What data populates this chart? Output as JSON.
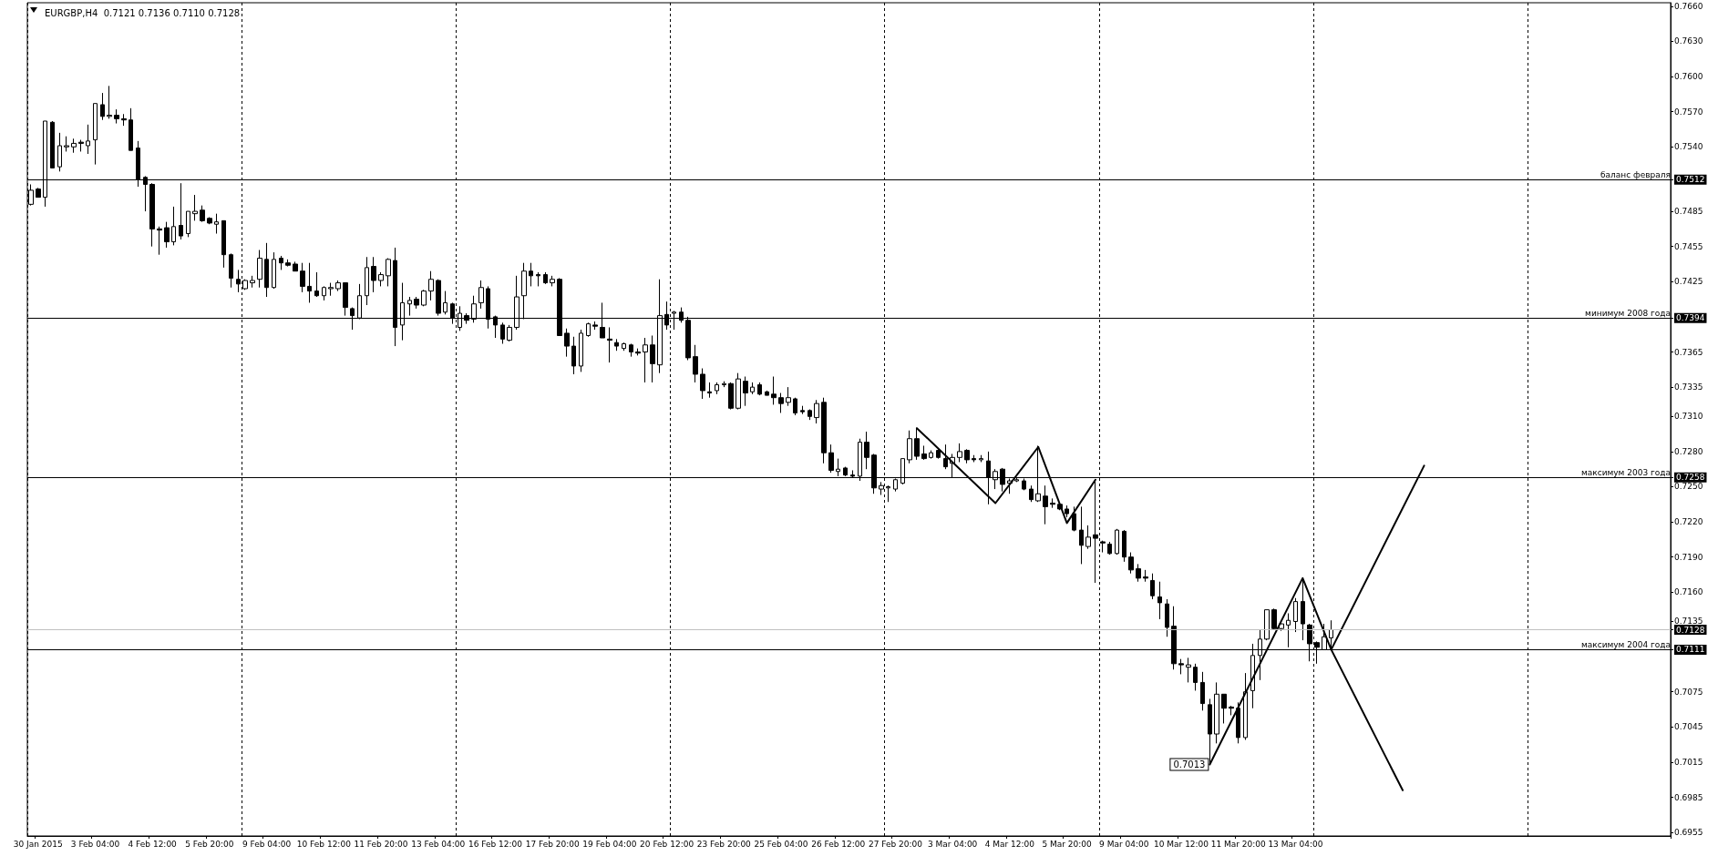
{
  "chart_data": {
    "type": "candlestick",
    "title": "EURGBP,H4  0.7121 0.7136 0.7110 0.7128",
    "color": "#000000",
    "categories": [
      null,
      "30 Jan 2015",
      null,
      null,
      null,
      null,
      null,
      null,
      null,
      "3 Feb 04:00",
      null,
      null,
      null,
      null,
      null,
      null,
      null,
      "4 Feb 12:00",
      null,
      null,
      null,
      null,
      null,
      null,
      null,
      "5 Feb 20:00",
      null,
      null,
      null,
      null,
      null,
      null,
      null,
      "9 Feb 04:00",
      null,
      null,
      null,
      null,
      null,
      null,
      null,
      "10 Feb 12:00",
      null,
      null,
      null,
      null,
      null,
      null,
      null,
      "11 Feb 20:00",
      null,
      null,
      null,
      null,
      null,
      null,
      null,
      "13 Feb 04:00",
      null,
      null,
      null,
      null,
      null,
      null,
      null,
      "16 Feb 12:00",
      null,
      null,
      null,
      null,
      null,
      null,
      null,
      "17 Feb 20:00",
      null,
      null,
      null,
      null,
      null,
      null,
      null,
      "19 Feb 04:00",
      null,
      null,
      null,
      null,
      null,
      null,
      null,
      "20 Feb 12:00",
      null,
      null,
      null,
      null,
      null,
      null,
      null,
      "23 Feb 20:00",
      null,
      null,
      null,
      null,
      null,
      null,
      null,
      "25 Feb 04:00",
      null,
      null,
      null,
      null,
      null,
      null,
      null,
      "26 Feb 12:00",
      null,
      null,
      null,
      null,
      null,
      null,
      null,
      "27 Feb 20:00",
      null,
      null,
      null,
      null,
      null,
      null,
      null,
      "3 Mar 04:00",
      null,
      null,
      null,
      null,
      null,
      null,
      null,
      "4 Mar 12:00",
      null,
      null,
      null,
      null,
      null,
      null,
      null,
      "5 Mar 20:00",
      null,
      null,
      null,
      null,
      null,
      null,
      null,
      "9 Mar 04:00",
      null,
      null,
      null,
      null,
      null,
      null,
      null,
      "10 Mar 12:00",
      null,
      null,
      null,
      null,
      null,
      null,
      null,
      "11 Mar 20:00",
      null,
      null,
      null,
      null,
      null,
      null,
      null,
      "13 Mar 04:00",
      null,
      null,
      null,
      null,
      null,
      null,
      null,
      null,
      null,
      null,
      null,
      null,
      null,
      null,
      null,
      null,
      null,
      null,
      null,
      null,
      null,
      null,
      null,
      null,
      null,
      null,
      null,
      null,
      null,
      null,
      null,
      null,
      null,
      null,
      null,
      null,
      null,
      null,
      null,
      null,
      null,
      null,
      null,
      null,
      null,
      null,
      null,
      null,
      null,
      null,
      null,
      null
    ],
    "ohlc": [
      [
        0.7491,
        0.7508,
        0.749,
        0.7503
      ],
      [
        0.7504,
        0.7505,
        0.7497,
        0.7497
      ],
      [
        0.7497,
        0.7562,
        0.7489,
        0.7562
      ],
      [
        0.7561,
        0.7562,
        0.7522,
        0.7522
      ],
      [
        0.7523,
        0.7552,
        0.7519,
        0.7541
      ],
      [
        0.754,
        0.7549,
        0.7536,
        0.7541
      ],
      [
        0.754,
        0.7547,
        0.7535,
        0.7543
      ],
      [
        0.7544,
        0.7546,
        0.7536,
        0.7543
      ],
      [
        0.7541,
        0.7559,
        0.7534,
        0.7545
      ],
      [
        0.7546,
        0.7577,
        0.7525,
        0.7577
      ],
      [
        0.7576,
        0.7586,
        0.7563,
        0.7566
      ],
      [
        0.7566,
        0.7592,
        0.7564,
        0.7567
      ],
      [
        0.7567,
        0.7572,
        0.756,
        0.7564
      ],
      [
        0.7564,
        0.7568,
        0.7558,
        0.7563
      ],
      [
        0.7563,
        0.7573,
        0.7537,
        0.7537
      ],
      [
        0.7539,
        0.7545,
        0.7506,
        0.7512
      ],
      [
        0.7514,
        0.7515,
        0.7485,
        0.7508
      ],
      [
        0.7508,
        0.7509,
        0.7455,
        0.747
      ],
      [
        0.747,
        0.7472,
        0.7448,
        0.7469
      ],
      [
        0.7471,
        0.7476,
        0.7454,
        0.7459
      ],
      [
        0.7459,
        0.7489,
        0.7456,
        0.7472
      ],
      [
        0.7473,
        0.7509,
        0.7461,
        0.7464
      ],
      [
        0.7466,
        0.7485,
        0.7463,
        0.7485
      ],
      [
        0.7483,
        0.7499,
        0.7477,
        0.7485
      ],
      [
        0.7486,
        0.749,
        0.7476,
        0.7477
      ],
      [
        0.7479,
        0.748,
        0.7474,
        0.7475
      ],
      [
        0.7474,
        0.7483,
        0.7466,
        0.7476
      ],
      [
        0.7477,
        0.7477,
        0.7437,
        0.7448
      ],
      [
        0.7448,
        0.7449,
        0.742,
        0.7428
      ],
      [
        0.7427,
        0.7435,
        0.7416,
        0.7423
      ],
      [
        0.7419,
        0.7427,
        0.7418,
        0.7426
      ],
      [
        0.7424,
        0.743,
        0.742,
        0.7426
      ],
      [
        0.7427,
        0.7452,
        0.742,
        0.7445
      ],
      [
        0.7444,
        0.7458,
        0.7412,
        0.742
      ],
      [
        0.742,
        0.745,
        0.7419,
        0.7444
      ],
      [
        0.7445,
        0.7447,
        0.7435,
        0.7441
      ],
      [
        0.7441,
        0.7444,
        0.7438,
        0.7439
      ],
      [
        0.744,
        0.7442,
        0.7434,
        0.7434
      ],
      [
        0.7434,
        0.7441,
        0.7416,
        0.7421
      ],
      [
        0.7421,
        0.7441,
        0.7407,
        0.7417
      ],
      [
        0.7417,
        0.7433,
        0.7412,
        0.7413
      ],
      [
        0.7413,
        0.7421,
        0.7409,
        0.742
      ],
      [
        0.7419,
        0.7424,
        0.7413,
        0.742
      ],
      [
        0.7419,
        0.7426,
        0.7417,
        0.7424
      ],
      [
        0.7424,
        0.7424,
        0.7396,
        0.7403
      ],
      [
        0.7402,
        0.7403,
        0.7384,
        0.7396
      ],
      [
        0.7394,
        0.7423,
        0.7393,
        0.7413
      ],
      [
        0.7413,
        0.7446,
        0.7405,
        0.7437
      ],
      [
        0.7438,
        0.7446,
        0.7416,
        0.7426
      ],
      [
        0.7426,
        0.7433,
        0.7421,
        0.7431
      ],
      [
        0.743,
        0.7445,
        0.7421,
        0.7444
      ],
      [
        0.7443,
        0.7454,
        0.737,
        0.7386
      ],
      [
        0.7388,
        0.7424,
        0.7375,
        0.7407
      ],
      [
        0.7406,
        0.7412,
        0.7396,
        0.7409
      ],
      [
        0.741,
        0.7412,
        0.7402,
        0.7405
      ],
      [
        0.7405,
        0.7418,
        0.7404,
        0.7417
      ],
      [
        0.7417,
        0.7434,
        0.7409,
        0.7427
      ],
      [
        0.7426,
        0.7427,
        0.7396,
        0.7398
      ],
      [
        0.7399,
        0.7417,
        0.7397,
        0.7407
      ],
      [
        0.7406,
        0.7407,
        0.7389,
        0.7394
      ],
      [
        0.7386,
        0.7404,
        0.7383,
        0.7398
      ],
      [
        0.7396,
        0.7398,
        0.7389,
        0.7392
      ],
      [
        0.7393,
        0.7413,
        0.739,
        0.7406
      ],
      [
        0.7407,
        0.7426,
        0.7402,
        0.742
      ],
      [
        0.7419,
        0.7421,
        0.7385,
        0.7393
      ],
      [
        0.7395,
        0.7396,
        0.7377,
        0.7388
      ],
      [
        0.7388,
        0.739,
        0.7372,
        0.7376
      ],
      [
        0.7375,
        0.7388,
        0.7374,
        0.7386
      ],
      [
        0.7386,
        0.743,
        0.7384,
        0.7412
      ],
      [
        0.7413,
        0.7441,
        0.7393,
        0.7434
      ],
      [
        0.7434,
        0.7441,
        0.7421,
        0.743
      ],
      [
        0.7431,
        0.7433,
        0.7421,
        0.743
      ],
      [
        0.7431,
        0.7433,
        0.7423,
        0.7424
      ],
      [
        0.7424,
        0.743,
        0.7421,
        0.7427
      ],
      [
        0.7427,
        0.7428,
        0.7379,
        0.7379
      ],
      [
        0.7381,
        0.7385,
        0.7361,
        0.737
      ],
      [
        0.737,
        0.7378,
        0.7346,
        0.7353
      ],
      [
        0.7353,
        0.7384,
        0.7348,
        0.7381
      ],
      [
        0.7379,
        0.739,
        0.7378,
        0.7389
      ],
      [
        0.7388,
        0.7391,
        0.7384,
        0.7387
      ],
      [
        0.7386,
        0.7407,
        0.7377,
        0.7377
      ],
      [
        0.7376,
        0.7386,
        0.7356,
        0.7375
      ],
      [
        0.7373,
        0.7376,
        0.7366,
        0.737
      ],
      [
        0.7368,
        0.7373,
        0.7366,
        0.7372
      ],
      [
        0.7371,
        0.7372,
        0.7361,
        0.7365
      ],
      [
        0.7365,
        0.7368,
        0.7362,
        0.7364
      ],
      [
        0.7365,
        0.7377,
        0.7339,
        0.7371
      ],
      [
        0.7371,
        0.7379,
        0.7339,
        0.7355
      ],
      [
        0.7354,
        0.7427,
        0.7347,
        0.7396
      ],
      [
        0.7397,
        0.7408,
        0.7384,
        0.7388
      ],
      [
        0.7398,
        0.74,
        0.7384,
        0.7399
      ],
      [
        0.7399,
        0.7403,
        0.739,
        0.7392
      ],
      [
        0.7392,
        0.7395,
        0.7358,
        0.736
      ],
      [
        0.7361,
        0.7371,
        0.7339,
        0.7346
      ],
      [
        0.7346,
        0.7351,
        0.7325,
        0.7332
      ],
      [
        0.7331,
        0.7339,
        0.7326,
        0.733
      ],
      [
        0.7332,
        0.7339,
        0.7329,
        0.7337
      ],
      [
        0.7337,
        0.734,
        0.7335,
        0.7338
      ],
      [
        0.7338,
        0.7339,
        0.7316,
        0.7317
      ],
      [
        0.7317,
        0.7347,
        0.7316,
        0.7342
      ],
      [
        0.734,
        0.7344,
        0.7319,
        0.733
      ],
      [
        0.7331,
        0.7339,
        0.7329,
        0.7335
      ],
      [
        0.7337,
        0.7339,
        0.7328,
        0.7329
      ],
      [
        0.7331,
        0.7332,
        0.7328,
        0.7328
      ],
      [
        0.7329,
        0.7344,
        0.732,
        0.7326
      ],
      [
        0.7326,
        0.733,
        0.7313,
        0.7321
      ],
      [
        0.7322,
        0.7335,
        0.7319,
        0.7326
      ],
      [
        0.7325,
        0.7326,
        0.7311,
        0.7313
      ],
      [
        0.7315,
        0.7319,
        0.7312,
        0.7314
      ],
      [
        0.7315,
        0.7316,
        0.7307,
        0.731
      ],
      [
        0.7309,
        0.7324,
        0.7304,
        0.7321
      ],
      [
        0.7322,
        0.7326,
        0.727,
        0.7279
      ],
      [
        0.7279,
        0.7286,
        0.7262,
        0.7264
      ],
      [
        0.7263,
        0.7274,
        0.7259,
        0.7265
      ],
      [
        0.7266,
        0.7267,
        0.7259,
        0.726
      ],
      [
        0.726,
        0.7264,
        0.7258,
        0.7259
      ],
      [
        0.7259,
        0.7291,
        0.7255,
        0.7288
      ],
      [
        0.7288,
        0.7297,
        0.7265,
        0.7275
      ],
      [
        0.7277,
        0.7278,
        0.7244,
        0.7249
      ],
      [
        0.7248,
        0.7254,
        0.7243,
        0.7251
      ],
      [
        0.7249,
        0.7251,
        0.7237,
        0.725
      ],
      [
        0.7248,
        0.7257,
        0.7246,
        0.7256
      ],
      [
        0.7253,
        0.7274,
        0.7252,
        0.7274
      ],
      [
        0.7273,
        0.7298,
        0.727,
        0.7291
      ],
      [
        0.7291,
        0.73,
        0.7273,
        0.7276
      ],
      [
        0.7278,
        0.7285,
        0.7273,
        0.7274
      ],
      [
        0.7275,
        0.7281,
        0.7274,
        0.7279
      ],
      [
        0.7281,
        0.7282,
        0.7274,
        0.7275
      ],
      [
        0.7274,
        0.7286,
        0.7265,
        0.7267
      ],
      [
        0.727,
        0.7278,
        0.7258,
        0.7275
      ],
      [
        0.7275,
        0.7287,
        0.7271,
        0.728
      ],
      [
        0.7281,
        0.7282,
        0.727,
        0.7273
      ],
      [
        0.7274,
        0.7277,
        0.7271,
        0.7273
      ],
      [
        0.7273,
        0.7277,
        0.7271,
        0.7274
      ],
      [
        0.7272,
        0.728,
        0.7235,
        0.7258
      ],
      [
        0.7256,
        0.7265,
        0.7248,
        0.7263
      ],
      [
        0.7265,
        0.7266,
        0.7246,
        0.7252
      ],
      [
        0.7253,
        0.7257,
        0.7244,
        0.7255
      ],
      [
        0.7255,
        0.7258,
        0.7254,
        0.7256
      ],
      [
        0.7255,
        0.7257,
        0.7247,
        0.7248
      ],
      [
        0.7248,
        0.7251,
        0.7237,
        0.7239
      ],
      [
        0.7238,
        0.7285,
        0.7237,
        0.7244
      ],
      [
        0.7242,
        0.7251,
        0.7218,
        0.7233
      ],
      [
        0.7236,
        0.724,
        0.7232,
        0.7235
      ],
      [
        0.7235,
        0.7236,
        0.723,
        0.7231
      ],
      [
        0.7231,
        0.7234,
        0.7224,
        0.7227
      ],
      [
        0.7227,
        0.7233,
        0.7212,
        0.7213
      ],
      [
        0.7213,
        0.7233,
        0.7184,
        0.72
      ],
      [
        0.7199,
        0.7217,
        0.7197,
        0.7207
      ],
      [
        0.7209,
        0.7255,
        0.7168,
        0.7206
      ],
      [
        0.7203,
        0.7204,
        0.7194,
        0.7202
      ],
      [
        0.7201,
        0.7203,
        0.7192,
        0.7193
      ],
      [
        0.7193,
        0.7214,
        0.7192,
        0.7213
      ],
      [
        0.7212,
        0.7213,
        0.7186,
        0.719
      ],
      [
        0.719,
        0.7194,
        0.7176,
        0.7179
      ],
      [
        0.718,
        0.7184,
        0.7169,
        0.7172
      ],
      [
        0.7173,
        0.7179,
        0.7169,
        0.7172
      ],
      [
        0.717,
        0.7176,
        0.7154,
        0.7157
      ],
      [
        0.7156,
        0.7169,
        0.7137,
        0.7151
      ],
      [
        0.715,
        0.7154,
        0.7122,
        0.713
      ],
      [
        0.7131,
        0.7148,
        0.7094,
        0.7099
      ],
      [
        0.7099,
        0.7103,
        0.709,
        0.7098
      ],
      [
        0.7096,
        0.7104,
        0.7083,
        0.7098
      ],
      [
        0.7096,
        0.7099,
        0.7076,
        0.7083
      ],
      [
        0.7083,
        0.7092,
        0.7059,
        0.7065
      ],
      [
        0.7064,
        0.7069,
        0.7013,
        0.7039
      ],
      [
        0.7039,
        0.7083,
        0.7031,
        0.7073
      ],
      [
        0.7073,
        0.7073,
        0.7048,
        0.7061
      ],
      [
        0.7062,
        0.7063,
        0.7055,
        0.7061
      ],
      [
        0.7061,
        0.7066,
        0.7031,
        0.7036
      ],
      [
        0.7036,
        0.7091,
        0.7034,
        0.7075
      ],
      [
        0.7076,
        0.7116,
        0.7061,
        0.7106
      ],
      [
        0.7106,
        0.7128,
        0.7085,
        0.712
      ],
      [
        0.712,
        0.7145,
        0.7119,
        0.7145
      ],
      [
        0.7145,
        0.7146,
        0.7128,
        0.7129
      ],
      [
        0.7129,
        0.7136,
        0.7127,
        0.7133
      ],
      [
        0.7132,
        0.7142,
        0.7113,
        0.7136
      ],
      [
        0.7135,
        0.7155,
        0.7126,
        0.7152
      ],
      [
        0.7152,
        0.7172,
        0.7119,
        0.7133
      ],
      [
        0.7132,
        0.7133,
        0.7101,
        0.7116
      ],
      [
        0.7117,
        0.7118,
        0.7099,
        0.7113
      ],
      [
        0.7111,
        0.7133,
        0.7111,
        0.7122
      ],
      [
        0.7121,
        0.7136,
        0.711,
        0.7128
      ],
      null,
      null,
      null,
      null,
      null,
      null,
      null,
      null,
      null,
      null,
      null,
      null,
      null,
      null,
      null,
      null,
      null,
      null,
      null,
      null,
      null,
      null,
      null,
      null,
      null,
      null,
      null,
      null,
      null,
      null,
      null,
      null,
      null,
      null,
      null,
      null,
      null,
      null,
      null,
      null,
      null,
      null,
      null,
      null,
      null,
      null,
      null
    ],
    "series": [
      {
        "type": "line",
        "color": "#000000",
        "values": [
          null,
          null,
          null,
          null,
          null,
          null,
          null,
          null,
          null,
          null,
          null,
          null,
          null,
          null,
          null,
          null,
          null,
          null,
          null,
          null,
          null,
          null,
          null,
          null,
          null,
          null,
          null,
          null,
          null,
          null,
          null,
          null,
          null,
          null,
          null,
          null,
          null,
          null,
          null,
          null,
          null,
          null,
          null,
          null,
          null,
          null,
          null,
          null,
          null,
          null,
          null,
          null,
          null,
          null,
          null,
          null,
          null,
          null,
          null,
          null,
          null,
          null,
          null,
          null,
          null,
          null,
          null,
          null,
          null,
          null,
          null,
          null,
          null,
          null,
          null,
          null,
          null,
          null,
          null,
          null,
          null,
          null,
          null,
          null,
          null,
          null,
          null,
          null,
          null,
          null,
          null,
          null,
          null,
          null,
          null,
          null,
          null,
          null,
          null,
          null,
          null,
          null,
          null,
          null,
          null,
          null,
          null,
          null,
          null,
          null,
          null,
          null,
          null,
          null,
          null,
          null,
          null,
          null,
          null,
          null,
          null,
          null,
          null,
          null,
          0.73,
          null,
          null,
          null,
          null,
          null,
          null,
          null,
          null,
          null,
          null,
          0.7236,
          null,
          null,
          null,
          null,
          null,
          0.7284,
          null,
          null,
          null,
          0.7219,
          null,
          null,
          null,
          0.7256,
          null,
          null,
          null,
          null,
          null,
          null,
          null,
          null,
          null,
          null,
          null,
          null,
          null,
          null,
          null,
          null,
          null,
          null,
          null,
          null,
          null,
          null,
          null,
          null,
          null,
          null,
          null,
          null,
          null,
          null,
          null,
          null,
          null,
          null,
          null,
          null,
          null,
          null,
          null,
          null,
          null,
          null,
          null,
          null,
          null,
          null,
          null,
          null,
          null,
          null,
          null,
          null,
          null,
          null,
          null,
          null,
          null,
          null,
          null,
          null,
          null,
          null,
          null,
          null,
          null,
          null,
          null,
          null,
          null,
          null,
          null,
          null,
          null,
          null,
          null,
          null,
          null,
          null,
          null,
          null
        ]
      },
      {
        "type": "line",
        "color": "#000000",
        "values": [
          null,
          null,
          null,
          null,
          null,
          null,
          null,
          null,
          null,
          null,
          null,
          null,
          null,
          null,
          null,
          null,
          null,
          null,
          null,
          null,
          null,
          null,
          null,
          null,
          null,
          null,
          null,
          null,
          null,
          null,
          null,
          null,
          null,
          null,
          null,
          null,
          null,
          null,
          null,
          null,
          null,
          null,
          null,
          null,
          null,
          null,
          null,
          null,
          null,
          null,
          null,
          null,
          null,
          null,
          null,
          null,
          null,
          null,
          null,
          null,
          null,
          null,
          null,
          null,
          null,
          null,
          null,
          null,
          null,
          null,
          null,
          null,
          null,
          null,
          null,
          null,
          null,
          null,
          null,
          null,
          null,
          null,
          null,
          null,
          null,
          null,
          null,
          null,
          null,
          null,
          null,
          null,
          null,
          null,
          null,
          null,
          null,
          null,
          null,
          null,
          null,
          null,
          null,
          null,
          null,
          null,
          null,
          null,
          null,
          null,
          null,
          null,
          null,
          null,
          null,
          null,
          null,
          null,
          null,
          null,
          null,
          null,
          null,
          null,
          null,
          null,
          null,
          null,
          null,
          null,
          null,
          null,
          null,
          null,
          null,
          null,
          null,
          null,
          null,
          null,
          null,
          null,
          null,
          null,
          null,
          null,
          null,
          null,
          null,
          null,
          null,
          null,
          null,
          null,
          null,
          null,
          null,
          null,
          null,
          null,
          null,
          null,
          null,
          null,
          null,
          0.7013,
          null,
          null,
          null,
          null,
          null,
          null,
          null,
          null,
          null,
          null,
          null,
          null,
          0.7172,
          null,
          null,
          null,
          0.7111,
          null,
          null,
          null,
          null,
          null,
          null,
          null,
          null,
          null,
          null,
          null,
          null,
          0.7268,
          null,
          null,
          null,
          null,
          null,
          null,
          null,
          null,
          null,
          null,
          null,
          null,
          null,
          null,
          null,
          null,
          null,
          null,
          null,
          null,
          null,
          null,
          null,
          null,
          null,
          null,
          null,
          null,
          null,
          null,
          null,
          null,
          null,
          null
        ]
      },
      {
        "type": "line",
        "color": "#000000",
        "values": [
          null,
          null,
          null,
          null,
          null,
          null,
          null,
          null,
          null,
          null,
          null,
          null,
          null,
          null,
          null,
          null,
          null,
          null,
          null,
          null,
          null,
          null,
          null,
          null,
          null,
          null,
          null,
          null,
          null,
          null,
          null,
          null,
          null,
          null,
          null,
          null,
          null,
          null,
          null,
          null,
          null,
          null,
          null,
          null,
          null,
          null,
          null,
          null,
          null,
          null,
          null,
          null,
          null,
          null,
          null,
          null,
          null,
          null,
          null,
          null,
          null,
          null,
          null,
          null,
          null,
          null,
          null,
          null,
          null,
          null,
          null,
          null,
          null,
          null,
          null,
          null,
          null,
          null,
          null,
          null,
          null,
          null,
          null,
          null,
          null,
          null,
          null,
          null,
          null,
          null,
          null,
          null,
          null,
          null,
          null,
          null,
          null,
          null,
          null,
          null,
          null,
          null,
          null,
          null,
          null,
          null,
          null,
          null,
          null,
          null,
          null,
          null,
          null,
          null,
          null,
          null,
          null,
          null,
          null,
          null,
          null,
          null,
          null,
          null,
          null,
          null,
          null,
          null,
          null,
          null,
          null,
          null,
          null,
          null,
          null,
          null,
          null,
          null,
          null,
          null,
          null,
          null,
          null,
          null,
          null,
          null,
          null,
          null,
          null,
          null,
          null,
          null,
          null,
          null,
          null,
          null,
          null,
          null,
          null,
          null,
          null,
          null,
          null,
          null,
          null,
          null,
          null,
          null,
          null,
          null,
          null,
          null,
          null,
          null,
          null,
          null,
          null,
          null,
          null,
          null,
          null,
          null,
          0.7111,
          null,
          null,
          null,
          null,
          null,
          null,
          null,
          null,
          null,
          0.6991,
          null,
          null,
          null,
          null,
          null,
          null,
          null,
          null,
          null,
          null,
          null,
          null,
          null,
          null,
          null,
          null,
          null,
          null,
          null,
          null,
          null,
          null,
          null,
          null,
          null,
          null,
          null,
          null,
          null,
          null,
          null,
          null,
          null,
          null,
          null,
          null,
          null
        ]
      }
    ],
    "ylim": [
      0.6952,
      0.7663
    ],
    "yticks": [
      {
        "value": 0.766,
        "label": "0.7660"
      },
      {
        "value": 0.763,
        "label": "0.7630"
      },
      {
        "value": 0.76,
        "label": "0.7600"
      },
      {
        "value": 0.757,
        "label": "0.7570"
      },
      {
        "value": 0.754,
        "label": "0.7540"
      },
      0.7512,
      0.7485,
      0.7455,
      0.7425,
      0.7394,
      0.7365,
      0.7335,
      {
        "value": 0.731,
        "label": "0.7310"
      },
      {
        "value": 0.728,
        "label": "0.7280"
      },
      0.7258,
      {
        "value": 0.725,
        "label": "0.7250"
      },
      {
        "value": 0.722,
        "label": "0.7220"
      },
      {
        "value": 0.719,
        "label": "0.7190"
      },
      {
        "value": 0.716,
        "label": "0.7160"
      },
      0.7135,
      0.7128,
      0.7111,
      0.7075,
      0.7045,
      0.7015,
      0.6985,
      0.6955
    ],
    "ref_lines": [
      {
        "axis": "y",
        "value": 0.7512,
        "label": "баланс февраля",
        "color": "#000000"
      },
      {
        "axis": "y",
        "value": 0.7394,
        "label": "минимум 2008 года",
        "color": "#000000"
      },
      {
        "axis": "y",
        "value": 0.7258,
        "label": "максимум 2003 года",
        "color": "#000000"
      },
      {
        "axis": "y",
        "value": 0.7128,
        "label": null,
        "color": "#c0c0c0"
      },
      {
        "axis": "y",
        "value": 0.7111,
        "label": "максимум 2004 года",
        "color": "#000000"
      }
    ],
    "annotations": [
      "0.7013"
    ],
    "grid": "x",
    "marker": "none",
    "line_style": "solid"
  }
}
